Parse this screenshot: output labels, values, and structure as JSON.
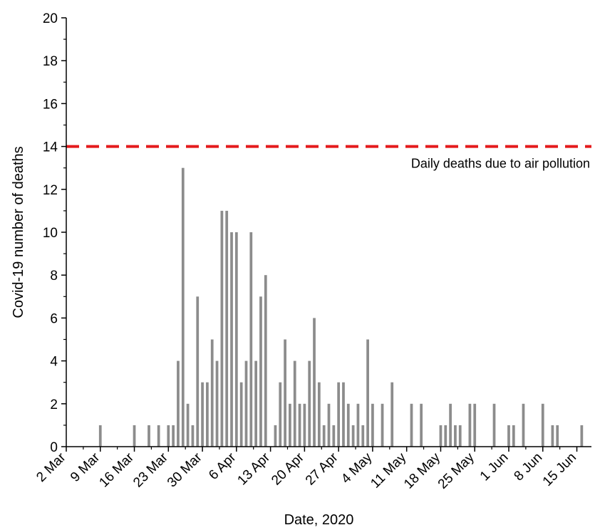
{
  "chart_data": {
    "type": "bar",
    "title": "",
    "xlabel": "Date, 2020",
    "ylabel": "Covid-19 number of deaths",
    "ylim": [
      0,
      20
    ],
    "yticks": [
      0,
      2,
      4,
      6,
      8,
      10,
      12,
      14,
      16,
      18,
      20
    ],
    "xlim": [
      "2020-03-02",
      "2020-06-18"
    ],
    "xtick_dates": [
      "2020-03-02",
      "2020-03-09",
      "2020-03-16",
      "2020-03-23",
      "2020-03-30",
      "2020-04-06",
      "2020-04-13",
      "2020-04-20",
      "2020-04-27",
      "2020-05-04",
      "2020-05-11",
      "2020-05-18",
      "2020-05-25",
      "2020-06-01",
      "2020-06-08",
      "2020-06-15"
    ],
    "xtick_labels": [
      "2 Mar",
      "9 Mar",
      "16 Mar",
      "23 Mar",
      "30 Mar",
      "6 Apr",
      "13 Apr",
      "20 Apr",
      "27 Apr",
      "4 May",
      "11 May",
      "18 May",
      "25 May",
      "1 Jun",
      "8 Jun",
      "15 Jun"
    ],
    "grid": false,
    "bar_color": "#8c8c8c",
    "series": [
      {
        "x": [
          "2020-03-09",
          "2020-03-16",
          "2020-03-19",
          "2020-03-21",
          "2020-03-23",
          "2020-03-24",
          "2020-03-25",
          "2020-03-26",
          "2020-03-27",
          "2020-03-28",
          "2020-03-29",
          "2020-03-30",
          "2020-03-31",
          "2020-04-01",
          "2020-04-02",
          "2020-04-03",
          "2020-04-04",
          "2020-04-05",
          "2020-04-06",
          "2020-04-07",
          "2020-04-08",
          "2020-04-09",
          "2020-04-10",
          "2020-04-11",
          "2020-04-12",
          "2020-04-14",
          "2020-04-15",
          "2020-04-16",
          "2020-04-17",
          "2020-04-18",
          "2020-04-19",
          "2020-04-20",
          "2020-04-21",
          "2020-04-22",
          "2020-04-23",
          "2020-04-24",
          "2020-04-25",
          "2020-04-26",
          "2020-04-27",
          "2020-04-28",
          "2020-04-29",
          "2020-04-30",
          "2020-05-01",
          "2020-05-02",
          "2020-05-03",
          "2020-05-04",
          "2020-05-06",
          "2020-05-08",
          "2020-05-12",
          "2020-05-14",
          "2020-05-18",
          "2020-05-19",
          "2020-05-20",
          "2020-05-21",
          "2020-05-22",
          "2020-05-24",
          "2020-05-25",
          "2020-05-29",
          "2020-06-01",
          "2020-06-02",
          "2020-06-04",
          "2020-06-08",
          "2020-06-10",
          "2020-06-11",
          "2020-06-16"
        ],
        "values": [
          1,
          1,
          1,
          1,
          1,
          1,
          4,
          13,
          2,
          1,
          7,
          3,
          3,
          5,
          4,
          11,
          11,
          10,
          10,
          3,
          4,
          10,
          4,
          7,
          8,
          1,
          3,
          5,
          2,
          4,
          2,
          2,
          4,
          6,
          3,
          1,
          2,
          1,
          3,
          3,
          2,
          1,
          2,
          1,
          5,
          2,
          2,
          3,
          2,
          2,
          1,
          1,
          2,
          1,
          1,
          2,
          2,
          2,
          1,
          1,
          2,
          2,
          1,
          1,
          1
        ]
      }
    ],
    "reference_line": {
      "y": 14,
      "label": "Daily deaths due to air pollution",
      "color": "#e41a1c",
      "style": "dashed"
    }
  }
}
